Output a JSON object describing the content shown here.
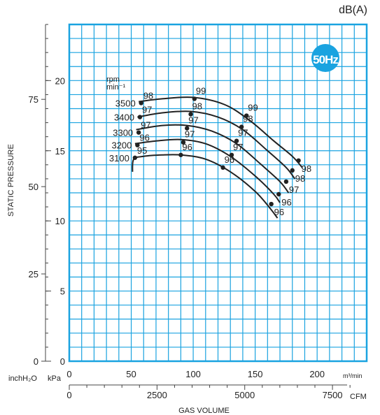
{
  "unit_top": "dB(A)",
  "badge": "50Hz",
  "ylabel": "STATIC PRESSURE",
  "xlabel": "GAS VOLUME",
  "unit_inch": "inchH₂O",
  "unit_kpa": "kPa",
  "unit_m3": "m³/min",
  "unit_cfm": "CFM",
  "rpm_label": [
    "rpm",
    "min⁻¹"
  ],
  "colors": {
    "grid": "#1aa3e0",
    "curve": "#222222"
  },
  "chart_data": {
    "type": "line",
    "title": "",
    "xlabel": "GAS VOLUME",
    "ylabel": "STATIC PRESSURE",
    "xlim": [
      0,
      240
    ],
    "ylim": [
      0,
      24
    ],
    "x_unit": "m³/min",
    "y_unit": "kPa",
    "x_ticks": [
      0,
      50,
      100,
      150,
      200
    ],
    "y_ticks": [
      0,
      5,
      10,
      15,
      20
    ],
    "cfm_ticks": [
      0,
      2500,
      5000,
      7500
    ],
    "inch_ticks": [
      0,
      25,
      50,
      75
    ],
    "grid": true,
    "series": [
      {
        "name": "3500",
        "curve": [
          [
            56,
            18.5
          ],
          [
            75,
            18.7
          ],
          [
            100,
            18.8
          ],
          [
            125,
            18.3
          ],
          [
            145,
            17.2
          ],
          [
            165,
            15.7
          ],
          [
            180,
            14.6
          ],
          [
            188,
            13.8
          ]
        ],
        "points": [
          [
            58,
            18.4,
            "98"
          ],
          [
            101,
            18.7,
            "99"
          ],
          [
            143,
            17.5,
            "99"
          ],
          [
            185,
            14.3,
            "98"
          ]
        ]
      },
      {
        "name": "3400",
        "curve": [
          [
            55,
            17.4
          ],
          [
            75,
            17.7
          ],
          [
            98,
            17.8
          ],
          [
            120,
            17.4
          ],
          [
            140,
            16.5
          ],
          [
            160,
            15.0
          ],
          [
            175,
            13.8
          ],
          [
            182,
            13.0
          ]
        ],
        "points": [
          [
            57,
            17.4,
            "97"
          ],
          [
            98,
            17.6,
            "98"
          ],
          [
            139,
            16.7,
            "98"
          ],
          [
            180,
            13.6,
            "98"
          ]
        ]
      },
      {
        "name": "3300",
        "curve": [
          [
            54,
            16.5
          ],
          [
            75,
            16.8
          ],
          [
            95,
            16.8
          ],
          [
            115,
            16.4
          ],
          [
            135,
            15.5
          ],
          [
            155,
            14.0
          ],
          [
            170,
            12.8
          ],
          [
            177,
            12.0
          ]
        ],
        "points": [
          [
            56,
            16.3,
            "97"
          ],
          [
            95,
            16.6,
            "97"
          ],
          [
            135,
            15.7,
            "97"
          ],
          [
            175,
            12.8,
            "97"
          ]
        ]
      },
      {
        "name": "3200",
        "curve": [
          [
            53,
            15.5
          ],
          [
            70,
            15.7
          ],
          [
            90,
            15.8
          ],
          [
            110,
            15.5
          ],
          [
            130,
            14.6
          ],
          [
            150,
            13.2
          ],
          [
            165,
            11.9
          ],
          [
            170,
            11.3
          ]
        ],
        "points": [
          [
            55,
            15.4,
            "96"
          ],
          [
            92,
            15.6,
            "97"
          ],
          [
            131,
            14.7,
            "97"
          ],
          [
            169,
            11.9,
            "96"
          ]
        ]
      },
      {
        "name": "3100",
        "curve": [
          [
            51,
            13.5
          ],
          [
            52,
            14.4
          ],
          [
            60,
            14.6
          ],
          [
            75,
            14.7
          ],
          [
            90,
            14.7
          ],
          [
            110,
            14.4
          ],
          [
            130,
            13.5
          ],
          [
            150,
            12.1
          ],
          [
            162,
            10.9
          ],
          [
            168,
            10.2
          ]
        ],
        "points": [
          [
            53,
            14.5,
            "95"
          ],
          [
            90,
            14.7,
            "96"
          ],
          [
            124,
            13.8,
            "96"
          ],
          [
            163,
            11.2,
            "96"
          ]
        ]
      }
    ]
  }
}
